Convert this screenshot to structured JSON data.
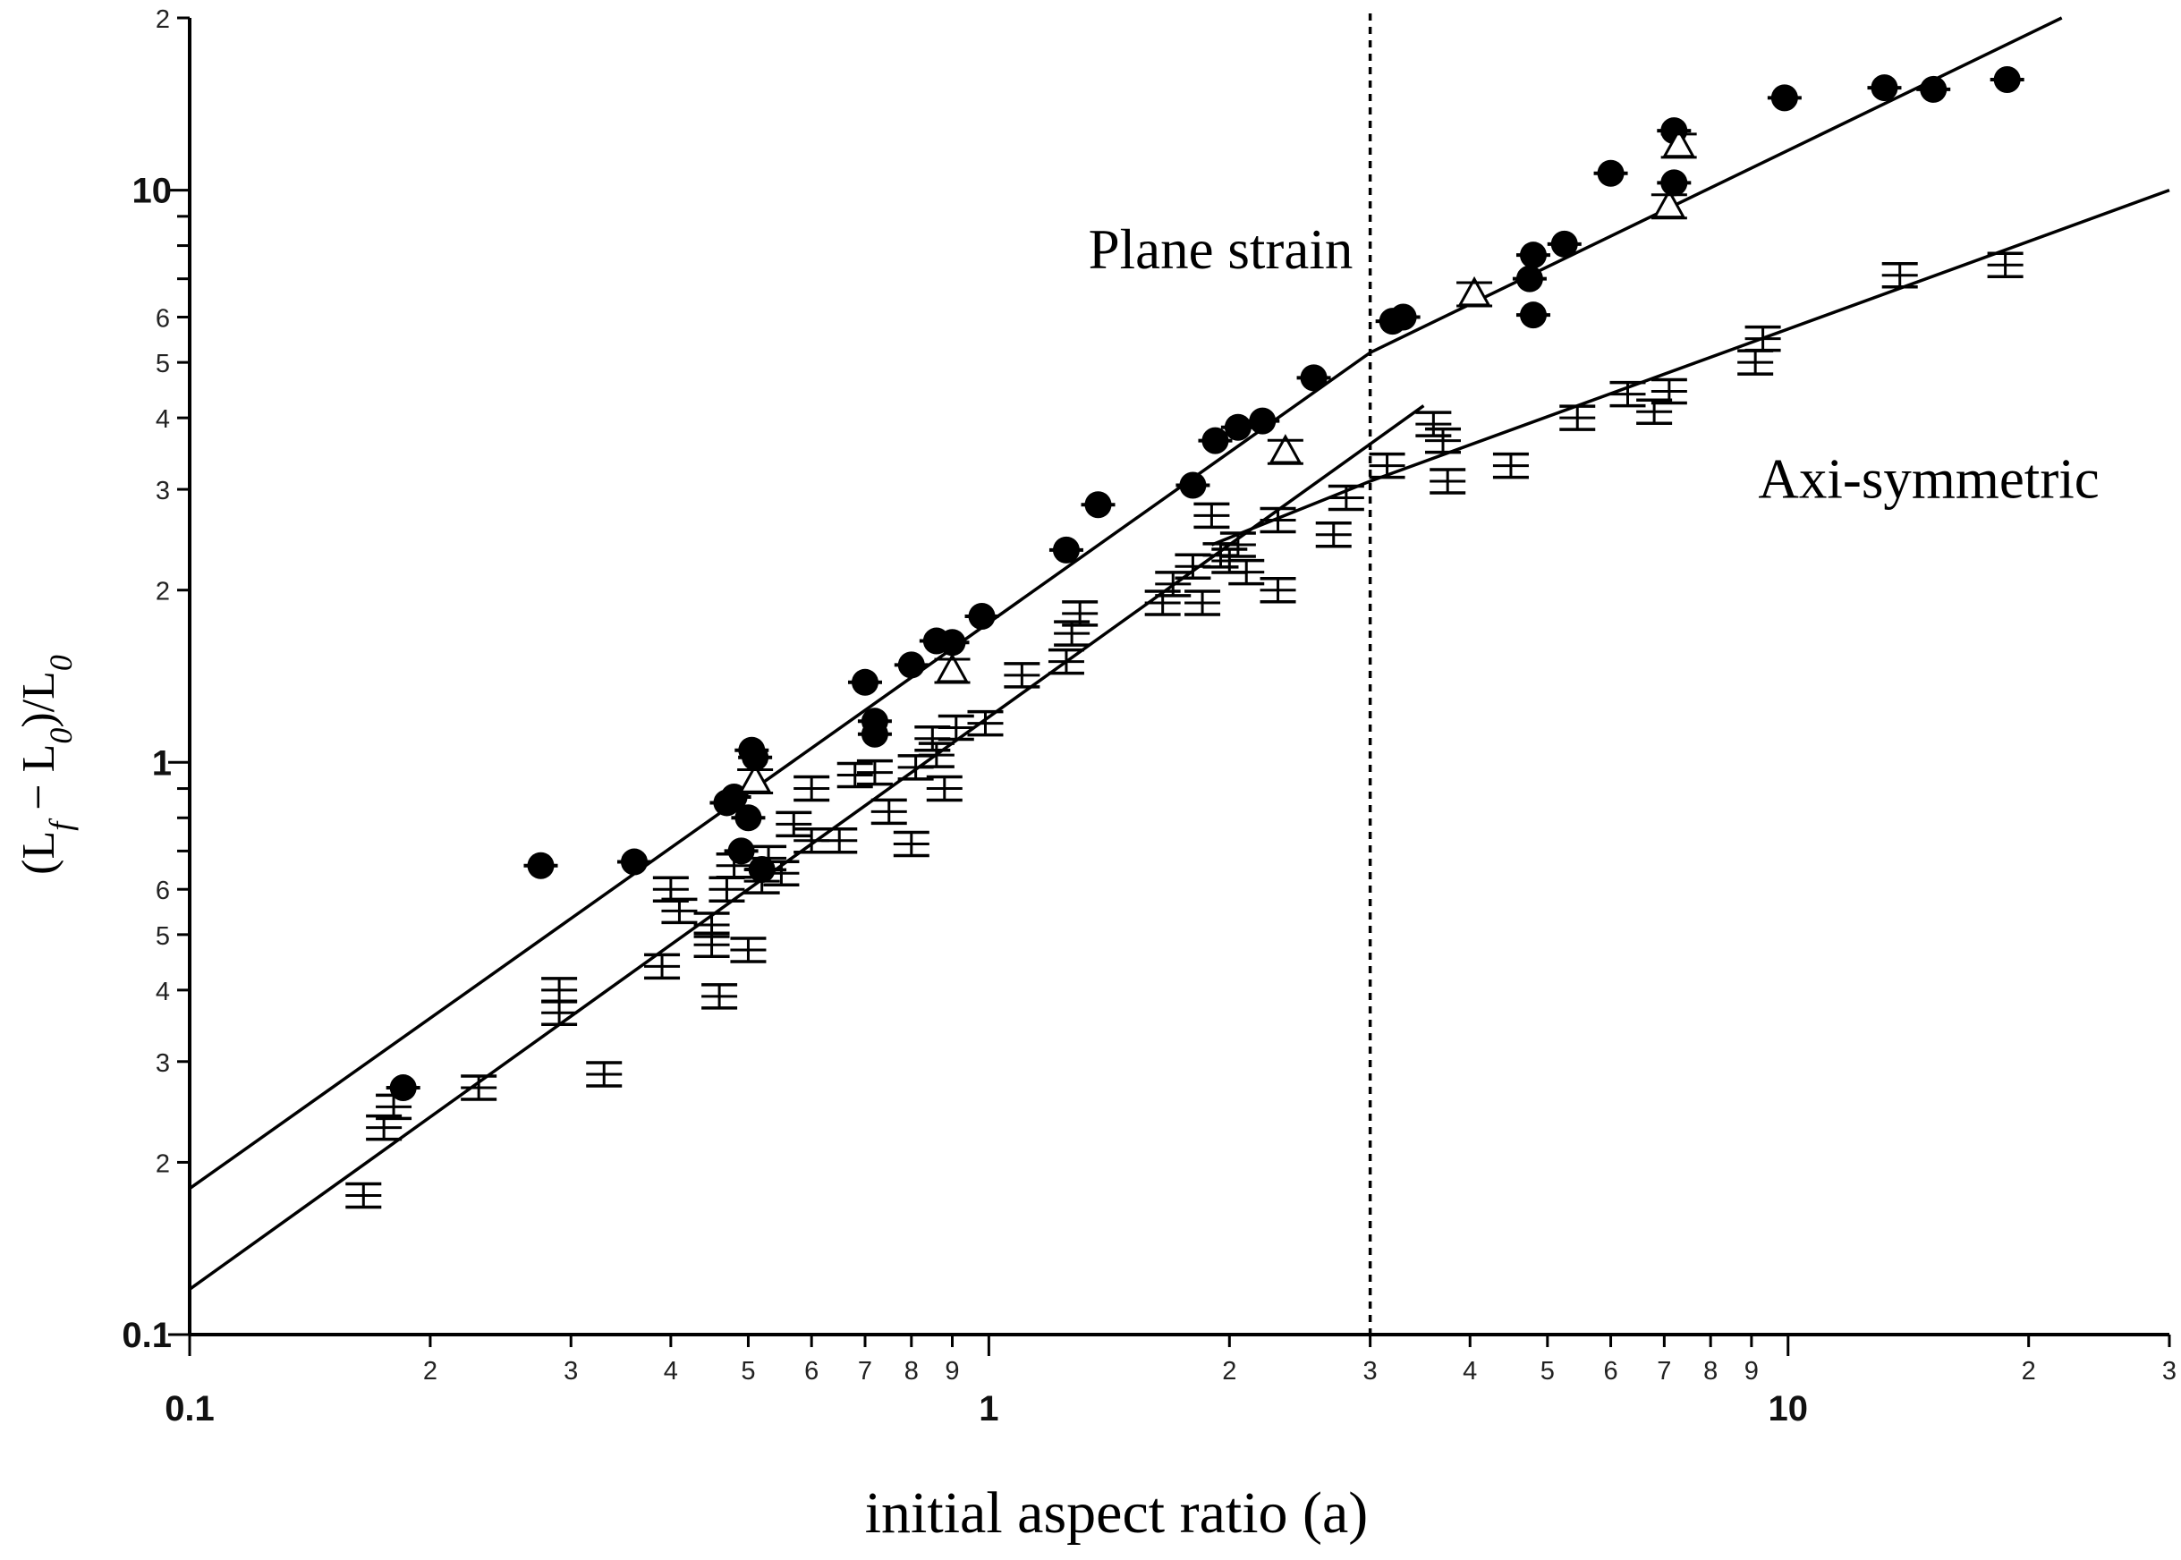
{
  "chart_data": {
    "type": "scatter",
    "xlabel": "initial aspect ratio (a)",
    "ylabel": "(L_f − L_0)/L_0",
    "x_scale": "log",
    "y_scale": "log",
    "xlim": [
      0.1,
      30
    ],
    "ylim": [
      0.1,
      20
    ],
    "grid": false,
    "x_tick_labels": {
      "major": [
        {
          "v": 0.1,
          "t": "0.1"
        },
        {
          "v": 1,
          "t": "1"
        },
        {
          "v": 10,
          "t": "10"
        }
      ],
      "minor": [
        {
          "v": 0.2,
          "t": "2"
        },
        {
          "v": 0.3,
          "t": "3"
        },
        {
          "v": 0.4,
          "t": "4"
        },
        {
          "v": 0.5,
          "t": "5"
        },
        {
          "v": 0.6,
          "t": "6"
        },
        {
          "v": 0.7,
          "t": "7"
        },
        {
          "v": 0.8,
          "t": "8"
        },
        {
          "v": 0.9,
          "t": "9"
        },
        {
          "v": 2,
          "t": "2"
        },
        {
          "v": 3,
          "t": "3"
        },
        {
          "v": 4,
          "t": "4"
        },
        {
          "v": 5,
          "t": "5"
        },
        {
          "v": 6,
          "t": "6"
        },
        {
          "v": 7,
          "t": "7"
        },
        {
          "v": 8,
          "t": "8"
        },
        {
          "v": 9,
          "t": "9"
        },
        {
          "v": 20,
          "t": "2"
        },
        {
          "v": 30,
          "t": "3"
        }
      ]
    },
    "y_tick_labels": {
      "major": [
        {
          "v": 0.1,
          "t": "0.1"
        },
        {
          "v": 1,
          "t": "1"
        },
        {
          "v": 10,
          "t": "10"
        }
      ],
      "minor": [
        {
          "v": 0.2,
          "t": "2"
        },
        {
          "v": 0.3,
          "t": "3"
        },
        {
          "v": 0.4,
          "t": "4"
        },
        {
          "v": 0.5,
          "t": "5"
        },
        {
          "v": 0.6,
          "t": "6"
        },
        {
          "v": 2,
          "t": "2"
        },
        {
          "v": 3,
          "t": "3"
        },
        {
          "v": 4,
          "t": "4"
        },
        {
          "v": 5,
          "t": "5"
        },
        {
          "v": 6,
          "t": "6"
        },
        {
          "v": 20,
          "t": "2"
        }
      ]
    },
    "annotations": [
      {
        "text": "Plane strain",
        "x": 1.95,
        "y": 7.3
      },
      {
        "text": "Axi-symmetric",
        "x": 15,
        "y": 2.9
      }
    ],
    "reference_line": {
      "x": 3,
      "style": "dotted"
    },
    "fit_lines": [
      {
        "name": "Plane strain",
        "points": [
          [
            0.1,
            0.18
          ],
          [
            3,
            5.2
          ],
          [
            22,
            20
          ]
        ]
      },
      {
        "name": "Axi-symmetric",
        "points": [
          [
            0.1,
            0.12
          ],
          [
            3.5,
            4.2
          ]
        ]
      },
      {
        "name": "Axi-symmetric",
        "points": [
          [
            1.9,
            2.4
          ],
          [
            3,
            3.1
          ],
          [
            30,
            10
          ]
        ]
      }
    ],
    "series": [
      {
        "marker": "filled-circle",
        "points": [
          [
            0.185,
            0.27
          ],
          [
            0.275,
            0.66
          ],
          [
            0.36,
            0.67
          ],
          [
            0.47,
            0.85
          ],
          [
            0.48,
            0.87
          ],
          [
            0.5,
            0.8
          ],
          [
            0.505,
            1.05
          ],
          [
            0.51,
            1.02
          ],
          [
            0.49,
            0.7
          ],
          [
            0.52,
            0.65
          ],
          [
            0.7,
            1.38
          ],
          [
            0.72,
            1.18
          ],
          [
            0.72,
            1.12
          ],
          [
            0.8,
            1.48
          ],
          [
            0.86,
            1.63
          ],
          [
            0.9,
            1.62
          ],
          [
            0.98,
            1.8
          ],
          [
            1.25,
            2.35
          ],
          [
            1.37,
            2.82
          ],
          [
            1.8,
            3.05
          ],
          [
            1.92,
            3.65
          ],
          [
            2.05,
            3.85
          ],
          [
            2.2,
            3.95
          ],
          [
            2.55,
            4.7
          ],
          [
            3.2,
            5.9
          ],
          [
            3.3,
            6.0
          ],
          [
            4.75,
            7.0
          ],
          [
            4.8,
            7.7
          ],
          [
            4.8,
            6.05
          ],
          [
            5.25,
            8.05
          ],
          [
            6.0,
            10.7
          ],
          [
            7.2,
            12.7
          ],
          [
            7.2,
            10.3
          ],
          [
            9.9,
            14.5
          ],
          [
            13.2,
            15.1
          ],
          [
            15.2,
            15.0
          ],
          [
            18.8,
            15.6
          ]
        ]
      },
      {
        "marker": "open-triangle",
        "points": [
          [
            0.51,
            0.93
          ],
          [
            0.9,
            1.45
          ],
          [
            2.35,
            3.5
          ],
          [
            4.05,
            6.6
          ],
          [
            7.1,
            9.4
          ],
          [
            7.3,
            12.0
          ]
        ]
      },
      {
        "marker": "error-bar",
        "points": [
          [
            0.165,
            0.175
          ],
          [
            0.175,
            0.23
          ],
          [
            0.18,
            0.25
          ],
          [
            0.23,
            0.27
          ],
          [
            0.29,
            0.4
          ],
          [
            0.29,
            0.365
          ],
          [
            0.33,
            0.285
          ],
          [
            0.39,
            0.44
          ],
          [
            0.4,
            0.6
          ],
          [
            0.41,
            0.55
          ],
          [
            0.45,
            0.52
          ],
          [
            0.45,
            0.48
          ],
          [
            0.46,
            0.39
          ],
          [
            0.47,
            0.6
          ],
          [
            0.48,
            0.66
          ],
          [
            0.5,
            0.47
          ],
          [
            0.52,
            0.62
          ],
          [
            0.53,
            0.68
          ],
          [
            0.55,
            0.64
          ],
          [
            0.57,
            0.78
          ],
          [
            0.6,
            0.73
          ],
          [
            0.6,
            0.9
          ],
          [
            0.65,
            0.73
          ],
          [
            0.68,
            0.95
          ],
          [
            0.72,
            0.96
          ],
          [
            0.75,
            0.82
          ],
          [
            0.8,
            0.72
          ],
          [
            0.81,
            0.98
          ],
          [
            0.85,
            1.1
          ],
          [
            0.86,
            1.03
          ],
          [
            0.88,
            0.9
          ],
          [
            0.91,
            1.15
          ],
          [
            0.99,
            1.17
          ],
          [
            1.1,
            1.42
          ],
          [
            1.25,
            1.5
          ],
          [
            1.27,
            1.68
          ],
          [
            1.3,
            1.82
          ],
          [
            1.65,
            1.9
          ],
          [
            1.7,
            2.05
          ],
          [
            1.8,
            2.2
          ],
          [
            1.85,
            1.9
          ],
          [
            1.9,
            2.7
          ],
          [
            1.95,
            2.3
          ],
          [
            2.0,
            2.25
          ],
          [
            2.05,
            2.4
          ],
          [
            2.1,
            2.15
          ],
          [
            2.3,
            2.0
          ],
          [
            2.3,
            2.65
          ],
          [
            2.7,
            2.5
          ],
          [
            2.8,
            2.9
          ],
          [
            3.15,
            3.3
          ],
          [
            3.6,
            3.9
          ],
          [
            3.7,
            3.65
          ],
          [
            3.75,
            3.1
          ],
          [
            4.5,
            3.3
          ],
          [
            5.45,
            4.0
          ],
          [
            6.3,
            4.4
          ],
          [
            6.8,
            4.1
          ],
          [
            7.1,
            4.45
          ],
          [
            9.1,
            5.0
          ],
          [
            9.3,
            5.5
          ],
          [
            13.8,
            7.1
          ],
          [
            18.7,
            7.4
          ]
        ]
      }
    ]
  }
}
